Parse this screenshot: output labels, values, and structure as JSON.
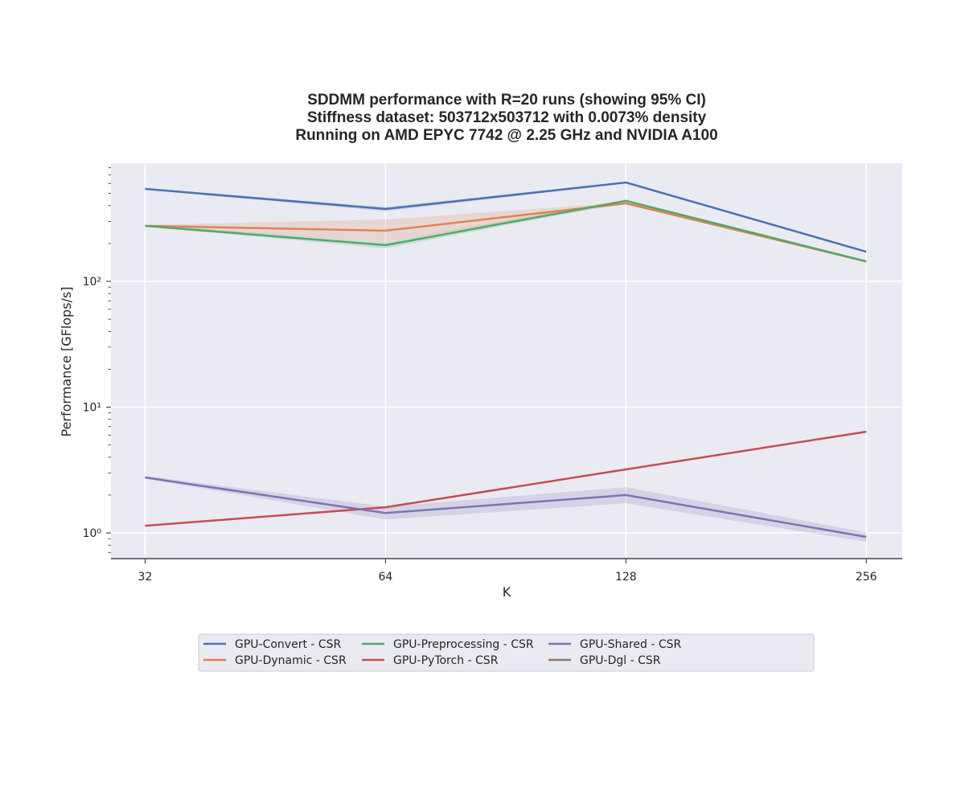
{
  "chart_data": {
    "type": "line",
    "title": [
      "SDDMM performance with R=20 runs (showing 95% CI)",
      "Stiffness dataset: 503712x503712 with 0.0073% density",
      "Running on AMD EPYC 7742 @ 2.25 GHz and NVIDIA A100"
    ],
    "x_label": "K",
    "y_label": "Performance [GFlops/s]",
    "x": [
      32,
      64,
      128,
      256
    ],
    "xscale": "log",
    "xlim": [
      29,
      284
    ],
    "xticks": [
      32,
      64,
      128,
      256
    ],
    "yscale": "log",
    "ylim": [
      0.625,
      870
    ],
    "yticks": [
      {
        "value": 1,
        "label": "10⁰"
      },
      {
        "value": 10,
        "label": "10¹"
      },
      {
        "value": 100,
        "label": "10²"
      }
    ],
    "yminorticks": [
      0.7,
      0.8,
      0.9,
      2,
      3,
      4,
      5,
      6,
      7,
      8,
      9,
      20,
      30,
      40,
      50,
      60,
      70,
      80,
      90,
      200,
      300,
      400,
      500,
      600,
      700,
      800
    ],
    "grid": true,
    "legend": "bottom",
    "series": [
      {
        "name": "GPU-Convert - CSR",
        "color": "#4c72b0",
        "values": [
          543,
          376,
          611,
          172
        ],
        "ci_lower": [
          535,
          362,
          602,
          169
        ],
        "ci_upper": [
          551,
          390,
          620,
          175
        ]
      },
      {
        "name": "GPU-Dynamic - CSR",
        "color": "#dd8452",
        "values": [
          276,
          253,
          417,
          144
        ],
        "ci_lower": [
          272,
          208,
          410,
          142
        ],
        "ci_upper": [
          281,
          310,
          425,
          146
        ]
      },
      {
        "name": "GPU-Preprocessing - CSR",
        "color": "#55a868",
        "values": [
          276,
          194,
          436,
          144
        ],
        "ci_lower": [
          272,
          183,
          425,
          142
        ],
        "ci_upper": [
          281,
          206,
          448,
          146
        ]
      },
      {
        "name": "GPU-PyTorch - CSR",
        "color": "#c44e52",
        "values": [
          1.14,
          1.6,
          3.2,
          6.38
        ],
        "ci_lower": [
          1.13,
          1.58,
          3.17,
          6.32
        ],
        "ci_upper": [
          1.15,
          1.62,
          3.23,
          6.44
        ]
      },
      {
        "name": "GPU-Shared - CSR",
        "color": "#8172b3",
        "values": [
          2.76,
          1.44,
          2.0,
          0.93
        ],
        "ci_lower": [
          2.7,
          1.28,
          1.72,
          0.85
        ],
        "ci_upper": [
          2.84,
          1.62,
          2.31,
          1.01
        ]
      },
      {
        "name": "GPU-Dgl - CSR",
        "color": "#937860",
        "values": [
          null,
          null,
          null,
          null
        ]
      }
    ]
  }
}
